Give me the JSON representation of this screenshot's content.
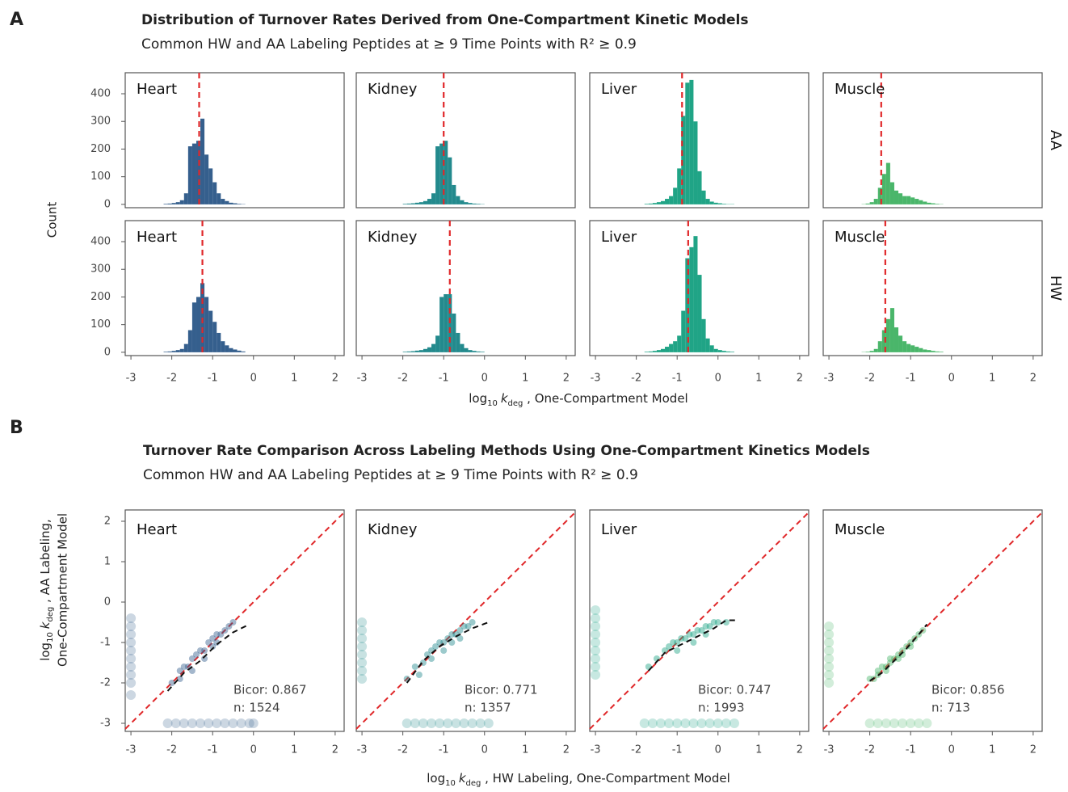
{
  "chart_data": [
    {
      "type": "histogram",
      "panel_label": "A",
      "title": "Distribution of Turnover Rates Derived from One-Compartment Kinetic Models",
      "subtitle": "Common HW and AA Labeling Peptides at ≥ 9 Time Points with R² ≥ 0.9",
      "x_label_parts": [
        "log",
        "10",
        "k",
        "deg",
        " , One-Compartment Model"
      ],
      "y_label": "Count",
      "xlim": [
        -3.14,
        2.22
      ],
      "xticks": [
        -3,
        -2,
        -1,
        0,
        1,
        2
      ],
      "ylim": [
        -12,
        476
      ],
      "yticks": [
        0,
        100,
        200,
        300,
        400
      ],
      "rows": [
        "AA",
        "HW"
      ],
      "facets": [
        {
          "label": "Heart",
          "row": "AA",
          "color": "#355f8d",
          "median": -1.33,
          "bins": [
            -2.2,
            -2.1,
            -2,
            -1.9,
            -1.8,
            -1.7,
            -1.6,
            -1.5,
            -1.4,
            -1.3,
            -1.2,
            -1.1,
            -1,
            -0.9,
            -0.8,
            -0.7,
            -0.6,
            -0.5,
            -0.4,
            -0.3,
            -0.2
          ],
          "counts": [
            2,
            3,
            5,
            8,
            15,
            40,
            210,
            220,
            230,
            310,
            180,
            130,
            80,
            40,
            20,
            12,
            6,
            4,
            2,
            1
          ]
        },
        {
          "label": "Kidney",
          "row": "AA",
          "color": "#238a8d",
          "median": -1.0,
          "bins": [
            -2,
            -1.9,
            -1.8,
            -1.7,
            -1.6,
            -1.5,
            -1.4,
            -1.3,
            -1.2,
            -1.1,
            -1,
            -0.9,
            -0.8,
            -0.7,
            -0.6,
            -0.5,
            -0.4,
            -0.3,
            -0.2,
            -0.1,
            0
          ],
          "counts": [
            2,
            3,
            4,
            6,
            8,
            12,
            20,
            40,
            210,
            220,
            230,
            170,
            70,
            30,
            15,
            8,
            5,
            3,
            2,
            1
          ]
        },
        {
          "label": "Liver",
          "row": "AA",
          "color": "#20a486",
          "median": -0.88,
          "bins": [
            -1.8,
            -1.7,
            -1.6,
            -1.5,
            -1.4,
            -1.3,
            -1.2,
            -1.1,
            -1,
            -0.9,
            -0.8,
            -0.7,
            -0.6,
            -0.5,
            -0.4,
            -0.3,
            -0.2,
            -0.1,
            0,
            0.1,
            0.2,
            0.3,
            0.4
          ],
          "counts": [
            2,
            3,
            5,
            8,
            12,
            20,
            30,
            60,
            130,
            320,
            440,
            450,
            300,
            120,
            50,
            20,
            10,
            6,
            4,
            2,
            1,
            1
          ]
        },
        {
          "label": "Muscle",
          "row": "AA",
          "color": "#4ab66a",
          "median": -1.72,
          "bins": [
            -2.2,
            -2.1,
            -2,
            -1.9,
            -1.8,
            -1.7,
            -1.6,
            -1.5,
            -1.4,
            -1.3,
            -1.2,
            -1.1,
            -1,
            -0.9,
            -0.8,
            -0.7,
            -0.6,
            -0.5,
            -0.4,
            -0.3,
            -0.2
          ],
          "counts": [
            1,
            3,
            8,
            20,
            60,
            110,
            150,
            80,
            50,
            40,
            30,
            30,
            25,
            20,
            15,
            10,
            6,
            4,
            2,
            1
          ]
        },
        {
          "label": "Heart",
          "row": "HW",
          "color": "#355f8d",
          "median": -1.25,
          "bins": [
            -2.2,
            -2.1,
            -2,
            -1.9,
            -1.8,
            -1.7,
            -1.6,
            -1.5,
            -1.4,
            -1.3,
            -1.2,
            -1.1,
            -1,
            -0.9,
            -0.8,
            -0.7,
            -0.6,
            -0.5,
            -0.4,
            -0.3,
            -0.2
          ],
          "counts": [
            2,
            3,
            5,
            8,
            12,
            30,
            80,
            180,
            200,
            250,
            200,
            150,
            110,
            70,
            40,
            25,
            15,
            10,
            6,
            3
          ]
        },
        {
          "label": "Kidney",
          "row": "HW",
          "color": "#238a8d",
          "median": -0.85,
          "bins": [
            -2,
            -1.9,
            -1.8,
            -1.7,
            -1.6,
            -1.5,
            -1.4,
            -1.3,
            -1.2,
            -1.1,
            -1,
            -0.9,
            -0.8,
            -0.7,
            -0.6,
            -0.5,
            -0.4,
            -0.3,
            -0.2,
            -0.1,
            0
          ],
          "counts": [
            2,
            3,
            4,
            6,
            8,
            12,
            18,
            30,
            60,
            200,
            210,
            210,
            140,
            70,
            30,
            15,
            8,
            5,
            3,
            2
          ]
        },
        {
          "label": "Liver",
          "row": "HW",
          "color": "#20a486",
          "median": -0.73,
          "bins": [
            -1.8,
            -1.7,
            -1.6,
            -1.5,
            -1.4,
            -1.3,
            -1.2,
            -1.1,
            -1,
            -0.9,
            -0.8,
            -0.7,
            -0.6,
            -0.5,
            -0.4,
            -0.3,
            -0.2,
            -0.1,
            0,
            0.1,
            0.2,
            0.3,
            0.4
          ],
          "counts": [
            2,
            3,
            5,
            8,
            12,
            20,
            30,
            40,
            60,
            150,
            340,
            380,
            420,
            280,
            120,
            50,
            25,
            12,
            8,
            5,
            3,
            2
          ]
        },
        {
          "label": "Muscle",
          "row": "HW",
          "color": "#4ab66a",
          "median": -1.62,
          "bins": [
            -2.2,
            -2.1,
            -2,
            -1.9,
            -1.8,
            -1.7,
            -1.6,
            -1.5,
            -1.4,
            -1.3,
            -1.2,
            -1.1,
            -1,
            -0.9,
            -0.8,
            -0.7,
            -0.6,
            -0.5,
            -0.4,
            -0.3,
            -0.2
          ],
          "counts": [
            1,
            2,
            5,
            12,
            40,
            80,
            120,
            160,
            90,
            60,
            40,
            30,
            25,
            20,
            15,
            10,
            8,
            5,
            3,
            2
          ]
        }
      ]
    },
    {
      "type": "scatter",
      "panel_label": "B",
      "title": "Turnover Rate Comparison Across Labeling Methods Using One-Compartment Kinetics Models",
      "subtitle": "Common HW and AA Labeling Peptides at ≥ 9 Time Points with R² ≥ 0.9",
      "x_label_parts": [
        "log",
        "10",
        "k",
        "deg",
        " , HW Labeling, One-Compartment Model"
      ],
      "y_label_parts": [
        "log",
        "10",
        "k",
        "deg",
        " , AA Labeling,"
      ],
      "y_label_line2": "One-Compartment Model",
      "xlim": [
        -3.14,
        2.22
      ],
      "xticks": [
        -3,
        -2,
        -1,
        0,
        1,
        2
      ],
      "ylim": [
        -3.2,
        2.28
      ],
      "yticks": [
        -3,
        -2,
        -1,
        0,
        1,
        2
      ],
      "facets": [
        {
          "label": "Heart",
          "color": "#355f8d",
          "annotations": [
            "Bicor: 0.867",
            "n: 1524"
          ],
          "x": [
            -2.0,
            -1.8,
            -1.7,
            -1.6,
            -1.5,
            -1.4,
            -1.3,
            -1.2,
            -1.1,
            -1.0,
            -0.9,
            -0.8,
            -0.7,
            -0.6,
            -0.5,
            -1.5,
            -1.2,
            -0.9,
            -1.8,
            -1.0
          ],
          "y": [
            -2.0,
            -1.7,
            -1.6,
            -1.6,
            -1.4,
            -1.3,
            -1.2,
            -1.2,
            -1.0,
            -0.9,
            -0.8,
            -0.8,
            -0.7,
            -0.6,
            -0.5,
            -1.7,
            -1.4,
            -1.0,
            -1.9,
            -1.1
          ],
          "loess_x": [
            -2.1,
            -1.7,
            -1.3,
            -0.9,
            -0.5,
            -0.1
          ],
          "loess_y": [
            -2.2,
            -1.75,
            -1.45,
            -1.05,
            -0.75,
            -0.55
          ],
          "rug_x": [
            -2.1,
            -1.9,
            -1.7,
            -1.5,
            -1.3,
            -1.1,
            -0.9,
            -0.7,
            -0.5,
            -0.3,
            -0.1,
            0.0
          ],
          "rug_y": [
            -2.3,
            -2.0,
            -1.8,
            -1.6,
            -1.4,
            -1.2,
            -1.0,
            -0.8,
            -0.6,
            -0.4
          ]
        },
        {
          "label": "Kidney",
          "color": "#238a8d",
          "annotations": [
            "Bicor: 0.771",
            "n: 1357"
          ],
          "x": [
            -1.9,
            -1.7,
            -1.5,
            -1.4,
            -1.3,
            -1.2,
            -1.1,
            -1.0,
            -0.9,
            -0.8,
            -0.7,
            -0.6,
            -0.5,
            -0.4,
            -0.3,
            -1.3,
            -1.0,
            -0.8,
            -1.6,
            -0.6
          ],
          "y": [
            -1.9,
            -1.6,
            -1.5,
            -1.3,
            -1.2,
            -1.1,
            -1.0,
            -1.0,
            -0.9,
            -0.8,
            -0.8,
            -0.7,
            -0.6,
            -0.6,
            -0.5,
            -1.4,
            -1.2,
            -1.0,
            -1.8,
            -0.9
          ],
          "loess_x": [
            -1.9,
            -1.5,
            -1.1,
            -0.7,
            -0.3,
            0.1
          ],
          "loess_y": [
            -2.0,
            -1.45,
            -1.1,
            -0.85,
            -0.65,
            -0.5
          ],
          "rug_x": [
            -1.9,
            -1.7,
            -1.5,
            -1.3,
            -1.1,
            -0.9,
            -0.7,
            -0.5,
            -0.3,
            -0.1,
            0.1
          ],
          "rug_y": [
            -1.9,
            -1.7,
            -1.5,
            -1.3,
            -1.1,
            -0.9,
            -0.7,
            -0.5
          ]
        },
        {
          "label": "Liver",
          "color": "#20a486",
          "annotations": [
            "Bicor: 0.747",
            "n: 1993"
          ],
          "x": [
            -1.7,
            -1.5,
            -1.3,
            -1.2,
            -1.1,
            -1.0,
            -0.9,
            -0.8,
            -0.7,
            -0.6,
            -0.5,
            -0.4,
            -0.3,
            -0.2,
            -0.1,
            0.0,
            0.2,
            -1.0,
            -0.6,
            -0.3
          ],
          "y": [
            -1.6,
            -1.4,
            -1.2,
            -1.1,
            -1.0,
            -1.0,
            -0.9,
            -0.9,
            -0.8,
            -0.8,
            -0.7,
            -0.7,
            -0.6,
            -0.6,
            -0.5,
            -0.5,
            -0.5,
            -1.2,
            -1.0,
            -0.8
          ],
          "loess_x": [
            -1.7,
            -1.3,
            -0.9,
            -0.5,
            -0.1,
            0.2,
            0.5
          ],
          "loess_y": [
            -1.7,
            -1.25,
            -1.05,
            -0.85,
            -0.65,
            -0.45,
            -0.45
          ],
          "rug_x": [
            -1.8,
            -1.6,
            -1.4,
            -1.2,
            -1.0,
            -0.8,
            -0.6,
            -0.4,
            -0.2,
            0.0,
            0.2,
            0.4
          ],
          "rug_y": [
            -1.8,
            -1.6,
            -1.4,
            -1.2,
            -1.0,
            -0.8,
            -0.6,
            -0.4,
            -0.2
          ]
        },
        {
          "label": "Muscle",
          "color": "#4ab66a",
          "annotations": [
            "Bicor: 0.856",
            "n: 713"
          ],
          "x": [
            -2.0,
            -1.9,
            -1.8,
            -1.7,
            -1.6,
            -1.5,
            -1.4,
            -1.3,
            -1.2,
            -1.1,
            -1.0,
            -0.9,
            -0.8,
            -0.7,
            -1.6,
            -1.3,
            -1.0,
            -1.8,
            -1.5,
            -1.2
          ],
          "y": [
            -1.9,
            -1.9,
            -1.8,
            -1.6,
            -1.6,
            -1.5,
            -1.4,
            -1.3,
            -1.2,
            -1.1,
            -1.0,
            -0.9,
            -0.8,
            -0.7,
            -1.7,
            -1.4,
            -1.1,
            -1.7,
            -1.4,
            -1.3
          ],
          "loess_x": [
            -2.0,
            -1.7,
            -1.4,
            -1.1,
            -0.8,
            -0.6
          ],
          "loess_y": [
            -1.95,
            -1.75,
            -1.45,
            -1.15,
            -0.8,
            -0.55
          ],
          "rug_x": [
            -2.0,
            -1.8,
            -1.6,
            -1.4,
            -1.2,
            -1.0,
            -0.8,
            -0.6
          ],
          "rug_y": [
            -2.0,
            -1.8,
            -1.6,
            -1.4,
            -1.2,
            -1.0,
            -0.8,
            -0.6
          ]
        }
      ]
    }
  ]
}
